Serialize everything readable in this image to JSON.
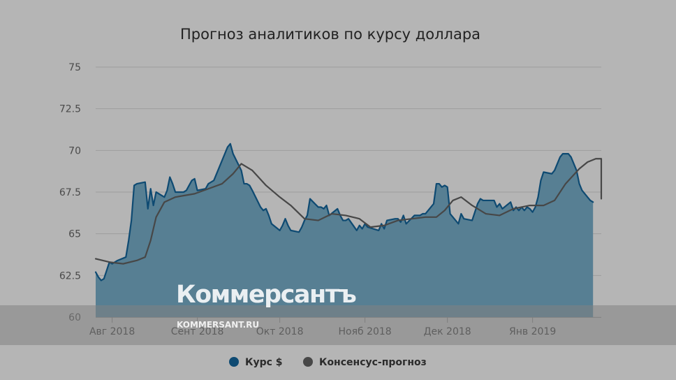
{
  "chart_data": {
    "type": "area",
    "title": "Прогноз аналитиков по курсу доллара",
    "xlabel": "",
    "ylabel": "",
    "ylim": [
      60,
      75
    ],
    "yticks": [
      "75",
      "72.5",
      "70",
      "67.5",
      "65",
      "62.5",
      "60"
    ],
    "ytick_values": [
      75,
      72.5,
      70,
      67.5,
      65,
      62.5,
      60
    ],
    "xrange": [
      "2018-07-26",
      "2019-01-26"
    ],
    "xticks": [
      {
        "date": "2018-08-01",
        "label": "Авг 2018"
      },
      {
        "date": "2018-09-01",
        "label": "Сент 2018"
      },
      {
        "date": "2018-10-01",
        "label": "Окт 2018"
      },
      {
        "date": "2018-11-01",
        "label": "Нояб 2018"
      },
      {
        "date": "2018-12-01",
        "label": "Дек 2018"
      },
      {
        "date": "2019-01-01",
        "label": "Янв 2019"
      }
    ],
    "grid": true,
    "legend_position": "bottom",
    "series": [
      {
        "name": "Курс $",
        "kind": "area",
        "color": "#0e4a72",
        "fill": "#577f93",
        "points": [
          [
            "2018-07-26",
            62.7
          ],
          [
            "2018-07-27",
            62.4
          ],
          [
            "2018-07-28",
            62.2
          ],
          [
            "2018-07-29",
            62.3
          ],
          [
            "2018-07-30",
            62.8
          ],
          [
            "2018-07-31",
            63.3
          ],
          [
            "2018-08-01",
            63.2
          ],
          [
            "2018-08-02",
            63.3
          ],
          [
            "2018-08-03",
            63.4
          ],
          [
            "2018-08-06",
            63.6
          ],
          [
            "2018-08-07",
            64.6
          ],
          [
            "2018-08-08",
            65.8
          ],
          [
            "2018-08-09",
            67.9
          ],
          [
            "2018-08-10",
            68.0
          ],
          [
            "2018-08-13",
            68.1
          ],
          [
            "2018-08-14",
            66.5
          ],
          [
            "2018-08-15",
            67.7
          ],
          [
            "2018-08-16",
            66.7
          ],
          [
            "2018-08-17",
            67.5
          ],
          [
            "2018-08-20",
            67.2
          ],
          [
            "2018-08-21",
            67.6
          ],
          [
            "2018-08-22",
            68.4
          ],
          [
            "2018-08-23",
            68.0
          ],
          [
            "2018-08-24",
            67.5
          ],
          [
            "2018-08-27",
            67.5
          ],
          [
            "2018-08-28",
            67.6
          ],
          [
            "2018-08-29",
            67.9
          ],
          [
            "2018-08-30",
            68.2
          ],
          [
            "2018-08-31",
            68.3
          ],
          [
            "2018-09-01",
            67.6
          ],
          [
            "2018-09-04",
            67.7
          ],
          [
            "2018-09-05",
            68.0
          ],
          [
            "2018-09-06",
            68.1
          ],
          [
            "2018-09-07",
            68.2
          ],
          [
            "2018-09-10",
            69.4
          ],
          [
            "2018-09-11",
            69.8
          ],
          [
            "2018-09-12",
            70.2
          ],
          [
            "2018-09-13",
            70.4
          ],
          [
            "2018-09-14",
            69.8
          ],
          [
            "2018-09-17",
            68.8
          ],
          [
            "2018-09-18",
            68.0
          ],
          [
            "2018-09-19",
            68.0
          ],
          [
            "2018-09-20",
            67.9
          ],
          [
            "2018-09-21",
            67.6
          ],
          [
            "2018-09-24",
            66.6
          ],
          [
            "2018-09-25",
            66.4
          ],
          [
            "2018-09-26",
            66.5
          ],
          [
            "2018-09-27",
            66.1
          ],
          [
            "2018-09-28",
            65.6
          ],
          [
            "2018-10-01",
            65.2
          ],
          [
            "2018-10-02",
            65.5
          ],
          [
            "2018-10-03",
            65.9
          ],
          [
            "2018-10-04",
            65.5
          ],
          [
            "2018-10-05",
            65.2
          ],
          [
            "2018-10-08",
            65.1
          ],
          [
            "2018-10-09",
            65.4
          ],
          [
            "2018-10-10",
            65.8
          ],
          [
            "2018-10-11",
            66.1
          ],
          [
            "2018-10-12",
            67.1
          ],
          [
            "2018-10-15",
            66.6
          ],
          [
            "2018-10-16",
            66.6
          ],
          [
            "2018-10-17",
            66.5
          ],
          [
            "2018-10-18",
            66.7
          ],
          [
            "2018-10-19",
            66.1
          ],
          [
            "2018-10-22",
            66.5
          ],
          [
            "2018-10-23",
            66.1
          ],
          [
            "2018-10-24",
            65.8
          ],
          [
            "2018-10-25",
            65.8
          ],
          [
            "2018-10-26",
            65.9
          ],
          [
            "2018-10-29",
            65.2
          ],
          [
            "2018-10-30",
            65.5
          ],
          [
            "2018-10-31",
            65.3
          ],
          [
            "2018-11-01",
            65.6
          ],
          [
            "2018-11-02",
            65.4
          ],
          [
            "2018-11-06",
            65.2
          ],
          [
            "2018-11-07",
            65.6
          ],
          [
            "2018-11-08",
            65.3
          ],
          [
            "2018-11-09",
            65.8
          ],
          [
            "2018-11-12",
            65.9
          ],
          [
            "2018-11-13",
            65.9
          ],
          [
            "2018-11-14",
            65.7
          ],
          [
            "2018-11-15",
            66.1
          ],
          [
            "2018-11-16",
            65.6
          ],
          [
            "2018-11-19",
            66.1
          ],
          [
            "2018-11-20",
            66.1
          ],
          [
            "2018-11-21",
            66.1
          ],
          [
            "2018-11-22",
            66.2
          ],
          [
            "2018-11-23",
            66.2
          ],
          [
            "2018-11-26",
            66.8
          ],
          [
            "2018-11-27",
            68.0
          ],
          [
            "2018-11-28",
            68.0
          ],
          [
            "2018-11-29",
            67.8
          ],
          [
            "2018-11-30",
            67.9
          ],
          [
            "2018-12-01",
            67.8
          ],
          [
            "2018-12-02",
            66.2
          ],
          [
            "2018-12-03",
            66.0
          ],
          [
            "2018-12-04",
            65.8
          ],
          [
            "2018-12-05",
            65.6
          ],
          [
            "2018-12-06",
            66.2
          ],
          [
            "2018-12-07",
            65.9
          ],
          [
            "2018-12-10",
            65.8
          ],
          [
            "2018-12-11",
            66.3
          ],
          [
            "2018-12-12",
            66.8
          ],
          [
            "2018-12-13",
            67.1
          ],
          [
            "2018-12-14",
            67.0
          ],
          [
            "2018-12-17",
            67.0
          ],
          [
            "2018-12-18",
            67.0
          ],
          [
            "2018-12-19",
            66.6
          ],
          [
            "2018-12-20",
            66.8
          ],
          [
            "2018-12-21",
            66.5
          ],
          [
            "2018-12-24",
            66.9
          ],
          [
            "2018-12-25",
            66.4
          ],
          [
            "2018-12-26",
            66.6
          ],
          [
            "2018-12-27",
            66.4
          ],
          [
            "2018-12-28",
            66.6
          ],
          [
            "2018-12-29",
            66.4
          ],
          [
            "2018-12-30",
            66.6
          ],
          [
            "2018-12-31",
            66.5
          ],
          [
            "2019-01-01",
            66.3
          ],
          [
            "2019-01-02",
            66.6
          ],
          [
            "2019-01-03",
            67.2
          ],
          [
            "2019-01-04",
            68.2
          ],
          [
            "2019-01-05",
            68.7
          ],
          [
            "2019-01-08",
            68.6
          ],
          [
            "2019-01-09",
            68.8
          ],
          [
            "2019-01-10",
            69.2
          ],
          [
            "2019-01-11",
            69.6
          ],
          [
            "2019-01-12",
            69.8
          ],
          [
            "2019-01-14",
            69.8
          ],
          [
            "2019-01-15",
            69.6
          ],
          [
            "2019-01-16",
            69.2
          ],
          [
            "2019-01-17",
            68.8
          ],
          [
            "2019-01-18",
            68.0
          ],
          [
            "2019-01-19",
            67.6
          ],
          [
            "2019-01-21",
            67.2
          ],
          [
            "2019-01-22",
            67.0
          ],
          [
            "2019-01-23",
            66.9
          ]
        ]
      },
      {
        "name": "Консенсус-прогноз",
        "kind": "line",
        "color": "#474747",
        "points": [
          [
            "2018-07-26",
            63.5
          ],
          [
            "2018-07-31",
            63.3
          ],
          [
            "2018-08-05",
            63.2
          ],
          [
            "2018-08-10",
            63.4
          ],
          [
            "2018-08-13",
            63.6
          ],
          [
            "2018-08-15",
            64.6
          ],
          [
            "2018-08-17",
            66.0
          ],
          [
            "2018-08-20",
            66.9
          ],
          [
            "2018-08-24",
            67.2
          ],
          [
            "2018-08-31",
            67.4
          ],
          [
            "2018-09-05",
            67.7
          ],
          [
            "2018-09-10",
            68.0
          ],
          [
            "2018-09-14",
            68.6
          ],
          [
            "2018-09-17",
            69.2
          ],
          [
            "2018-09-21",
            68.8
          ],
          [
            "2018-09-26",
            67.9
          ],
          [
            "2018-10-01",
            67.2
          ],
          [
            "2018-10-05",
            66.7
          ],
          [
            "2018-10-10",
            65.9
          ],
          [
            "2018-10-15",
            65.8
          ],
          [
            "2018-10-20",
            66.2
          ],
          [
            "2018-10-25",
            66.1
          ],
          [
            "2018-10-30",
            65.9
          ],
          [
            "2018-11-03",
            65.4
          ],
          [
            "2018-11-08",
            65.5
          ],
          [
            "2018-11-13",
            65.8
          ],
          [
            "2018-11-18",
            65.9
          ],
          [
            "2018-11-23",
            66.0
          ],
          [
            "2018-11-27",
            66.0
          ],
          [
            "2018-11-30",
            66.4
          ],
          [
            "2018-12-03",
            67.0
          ],
          [
            "2018-12-06",
            67.2
          ],
          [
            "2018-12-10",
            66.7
          ],
          [
            "2018-12-15",
            66.2
          ],
          [
            "2018-12-20",
            66.1
          ],
          [
            "2018-12-25",
            66.5
          ],
          [
            "2018-12-31",
            66.7
          ],
          [
            "2019-01-05",
            66.7
          ],
          [
            "2019-01-09",
            67.0
          ],
          [
            "2019-01-13",
            68.0
          ],
          [
            "2019-01-18",
            68.9
          ],
          [
            "2019-01-21",
            69.3
          ],
          [
            "2019-01-24",
            69.5
          ],
          [
            "2019-01-26",
            69.5
          ],
          [
            "2019-01-26",
            67.1
          ]
        ]
      }
    ],
    "colors": {
      "background": "#b5b5b5",
      "grid": "#9d9d9d"
    }
  },
  "watermark": {
    "logo": "Коммерсантъ",
    "site": "KOMMERSANT.RU"
  }
}
